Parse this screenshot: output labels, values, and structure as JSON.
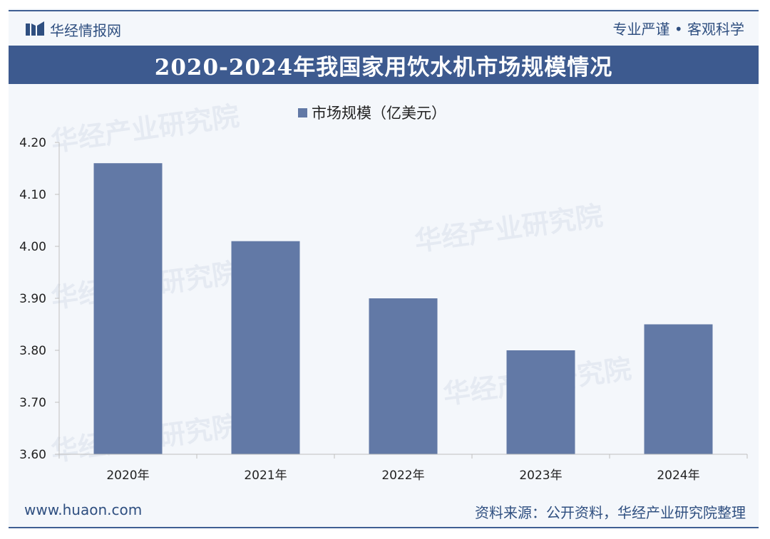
{
  "header": {
    "brand_name": "华经情报网",
    "slogan": "专业严谨 • 客观科学"
  },
  "title": "2020-2024年我国家用饮水机市场规模情况",
  "footer": {
    "website": "www.huaon.com",
    "source": "资料来源：公开资料，华经产业研究院整理"
  },
  "watermark": {
    "text": "华经产业研究院",
    "url": "www.huaon.com"
  },
  "colors": {
    "bar": "#6279a6",
    "title_bg": "#3d5a8f",
    "brand": "#2f4f80"
  },
  "chart_data": {
    "type": "bar",
    "categories": [
      "2020年",
      "2021年",
      "2022年",
      "2023年",
      "2024年"
    ],
    "series": [
      {
        "name": "市场规模（亿美元）",
        "values": [
          4.16,
          4.01,
          3.9,
          3.8,
          3.85
        ]
      }
    ],
    "y_ticks": [
      "4.20",
      "4.10",
      "4.00",
      "3.90",
      "3.80",
      "3.70",
      "3.60"
    ],
    "ylim": [
      3.6,
      4.2
    ],
    "legend_position": "top-center",
    "grid": false
  }
}
